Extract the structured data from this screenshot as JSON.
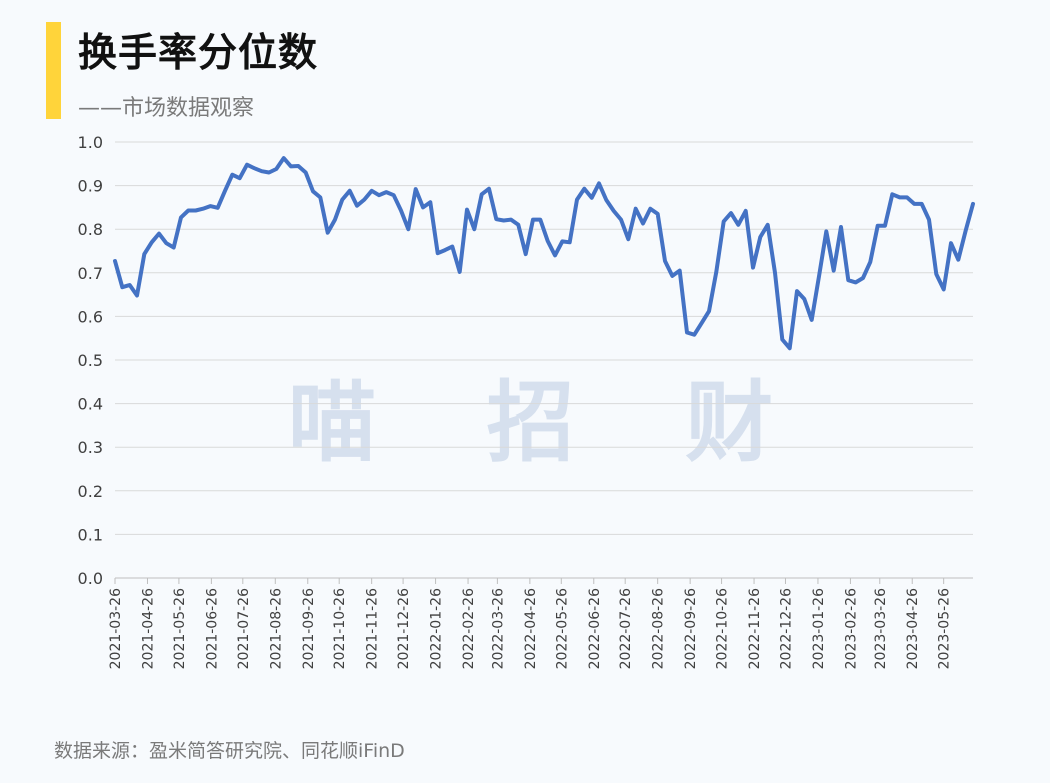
{
  "header": {
    "title": "换手率分位数",
    "subtitle": "——市场数据观察",
    "accent_color": "#ffd43a"
  },
  "watermark": "喵 招 财",
  "footer": {
    "source": "数据来源：盈米简答研究院、同花顺iFinD"
  },
  "chart_data": {
    "type": "line",
    "title": "换手率分位数",
    "xlabel": "",
    "ylabel": "",
    "ylim": [
      0,
      1.0
    ],
    "yticks": [
      "0.0",
      "0.1",
      "0.2",
      "0.3",
      "0.4",
      "0.5",
      "0.6",
      "0.7",
      "0.8",
      "0.9",
      "1.0"
    ],
    "xticks": [
      "2021-03-26",
      "2021-04-26",
      "2021-05-26",
      "2021-06-26",
      "2021-07-26",
      "2021-08-26",
      "2021-09-26",
      "2021-10-26",
      "2021-11-26",
      "2021-12-26",
      "2022-01-26",
      "2022-02-26",
      "2022-03-26",
      "2022-04-26",
      "2022-05-26",
      "2022-06-26",
      "2022-07-26",
      "2022-08-26",
      "2022-09-26",
      "2022-10-26",
      "2022-11-26",
      "2022-12-26",
      "2023-01-26",
      "2023-02-26",
      "2023-03-26",
      "2023-04-26",
      "2023-05-26"
    ],
    "x_start": "2021-03-26",
    "x_end": "2023-06-23",
    "grid": true,
    "line_color": "#4472c4",
    "series": [
      {
        "values": [
          0.727,
          0.667,
          0.672,
          0.648,
          0.743,
          0.77,
          0.79,
          0.768,
          0.758,
          0.827,
          0.843,
          0.843,
          0.847,
          0.853,
          0.849,
          0.888,
          0.925,
          0.917,
          0.948,
          0.94,
          0.933,
          0.93,
          0.938,
          0.963,
          0.944,
          0.945,
          0.93,
          0.887,
          0.873,
          0.792,
          0.822,
          0.868,
          0.888,
          0.854,
          0.868,
          0.888,
          0.878,
          0.885,
          0.878,
          0.843,
          0.8,
          0.892,
          0.85,
          0.862,
          0.745,
          0.752,
          0.76,
          0.702,
          0.845,
          0.8,
          0.88,
          0.893,
          0.823,
          0.82,
          0.822,
          0.81,
          0.743,
          0.822,
          0.822,
          0.773,
          0.74,
          0.772,
          0.77,
          0.868,
          0.893,
          0.872,
          0.905,
          0.867,
          0.842,
          0.822,
          0.777,
          0.847,
          0.813,
          0.847,
          0.835,
          0.727,
          0.693,
          0.705,
          0.563,
          0.558,
          0.585,
          0.612,
          0.702,
          0.818,
          0.837,
          0.81,
          0.842,
          0.712,
          0.782,
          0.81,
          0.7,
          0.547,
          0.527,
          0.658,
          0.64,
          0.592,
          0.692,
          0.795,
          0.705,
          0.805,
          0.683,
          0.678,
          0.688,
          0.725,
          0.808,
          0.808,
          0.88,
          0.873,
          0.873,
          0.858,
          0.858,
          0.822,
          0.697,
          0.662,
          0.768,
          0.73,
          0.797,
          0.858
        ]
      }
    ]
  }
}
